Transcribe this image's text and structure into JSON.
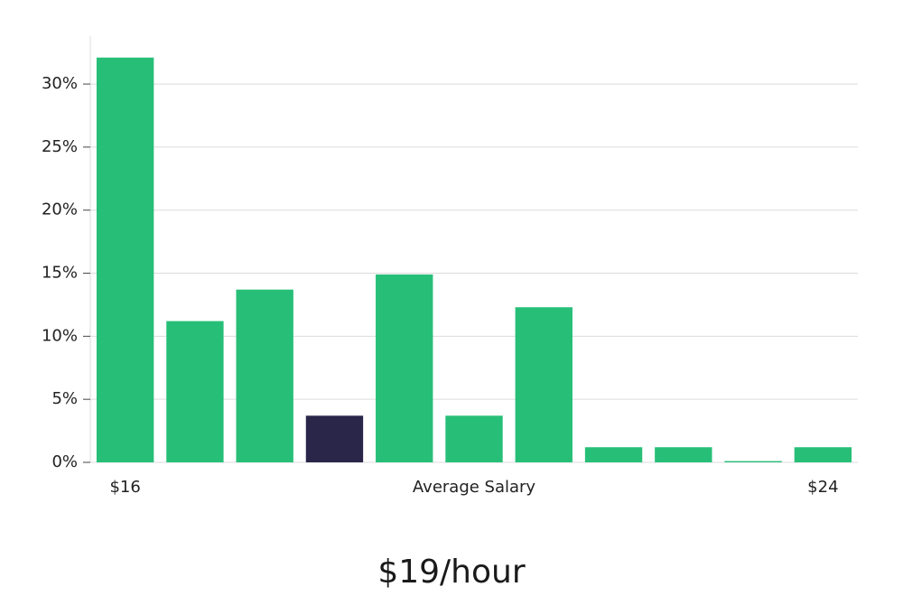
{
  "chart_data": {
    "type": "bar",
    "categories": [
      "$16",
      null,
      null,
      null,
      null,
      null,
      null,
      null,
      null,
      null,
      "$24"
    ],
    "values": [
      32.1,
      11.2,
      13.7,
      3.7,
      14.9,
      3.7,
      12.3,
      1.2,
      1.2,
      0.1,
      1.2
    ],
    "colors": [
      "#27bf78",
      "#27bf78",
      "#27bf78",
      "#29264a",
      "#27bf78",
      "#27bf78",
      "#27bf78",
      "#27bf78",
      "#27bf78",
      "#27bf78",
      "#27bf78"
    ],
    "x_label": "Average Salary",
    "caption": "$19/hour",
    "ylim": [
      0,
      33.8
    ],
    "yticks": [
      {
        "value": 0,
        "label": "0%"
      },
      {
        "value": 5,
        "label": "5%"
      },
      {
        "value": 10,
        "label": "10%"
      },
      {
        "value": 15,
        "label": "15%"
      },
      {
        "value": 20,
        "label": "20%"
      },
      {
        "value": 25,
        "label": "25%"
      },
      {
        "value": 30,
        "label": "30%"
      }
    ],
    "grid": true
  }
}
